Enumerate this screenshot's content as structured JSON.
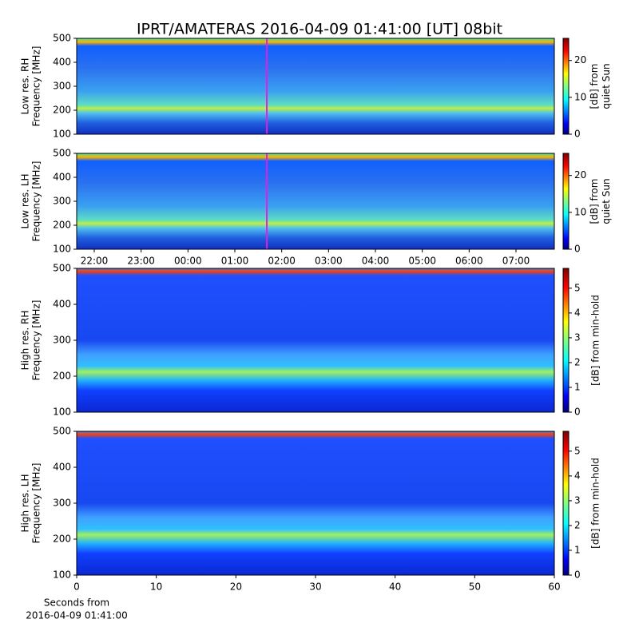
{
  "chart_data": [
    {
      "type": "heatmap",
      "title": "IPRT/AMATERAS 2016-04-09 01:41:00 [UT]   08bit",
      "ylabel": [
        "Low res. RH",
        "Frequency [MHz]"
      ],
      "ylim": [
        100,
        500
      ],
      "yticks": [
        100,
        200,
        300,
        400,
        500
      ],
      "xlim": [
        21.625,
        31.818
      ],
      "marker_x": 25.683,
      "marker_color": "#e020e0",
      "colorbar_label": [
        "[dB] from",
        "quiet Sun"
      ],
      "clim": [
        0,
        26
      ],
      "cticks": [
        0,
        10,
        20
      ]
    },
    {
      "type": "heatmap",
      "ylabel": [
        "Low res. LH",
        "Frequency [MHz]"
      ],
      "ylim": [
        100,
        500
      ],
      "yticks": [
        100,
        200,
        300,
        400,
        500
      ],
      "xlim": [
        21.625,
        31.818
      ],
      "marker_x": 25.683,
      "marker_color": "#e020e0",
      "xticks": [
        {
          "value": 22,
          "label": "22:00"
        },
        {
          "value": 23,
          "label": "23:00"
        },
        {
          "value": 24,
          "label": "00:00"
        },
        {
          "value": 25,
          "label": "01:00"
        },
        {
          "value": 26,
          "label": "02:00"
        },
        {
          "value": 27,
          "label": "03:00"
        },
        {
          "value": 28,
          "label": "04:00"
        },
        {
          "value": 29,
          "label": "05:00"
        },
        {
          "value": 30,
          "label": "06:00"
        },
        {
          "value": 31,
          "label": "07:00"
        }
      ],
      "colorbar_label": [
        "[dB] from",
        "quiet Sun"
      ],
      "clim": [
        0,
        26
      ],
      "cticks": [
        0,
        10,
        20
      ]
    },
    {
      "type": "heatmap",
      "ylabel": [
        "High res. RH",
        "Frequency [MHz]"
      ],
      "ylim": [
        100,
        500
      ],
      "yticks": [
        100,
        200,
        300,
        400,
        500
      ],
      "xlim": [
        0,
        60
      ],
      "colorbar_label": [
        "[dB] from min-hold"
      ],
      "clim": [
        0,
        5.8
      ],
      "cticks": [
        0,
        1,
        2,
        3,
        4,
        5
      ]
    },
    {
      "type": "heatmap",
      "ylabel": [
        "High res. LH",
        "Frequency [MHz]"
      ],
      "ylim": [
        100,
        500
      ],
      "yticks": [
        100,
        200,
        300,
        400,
        500
      ],
      "xlim": [
        0,
        60
      ],
      "xticks": [
        0,
        10,
        20,
        30,
        40,
        50,
        60
      ],
      "xlabel": [
        "Seconds from",
        "2016-04-09 01:41:00"
      ],
      "colorbar_label": [
        "[dB] from min-hold"
      ],
      "clim": [
        0,
        5.8
      ],
      "cticks": [
        0,
        1,
        2,
        3,
        4,
        5
      ]
    }
  ]
}
